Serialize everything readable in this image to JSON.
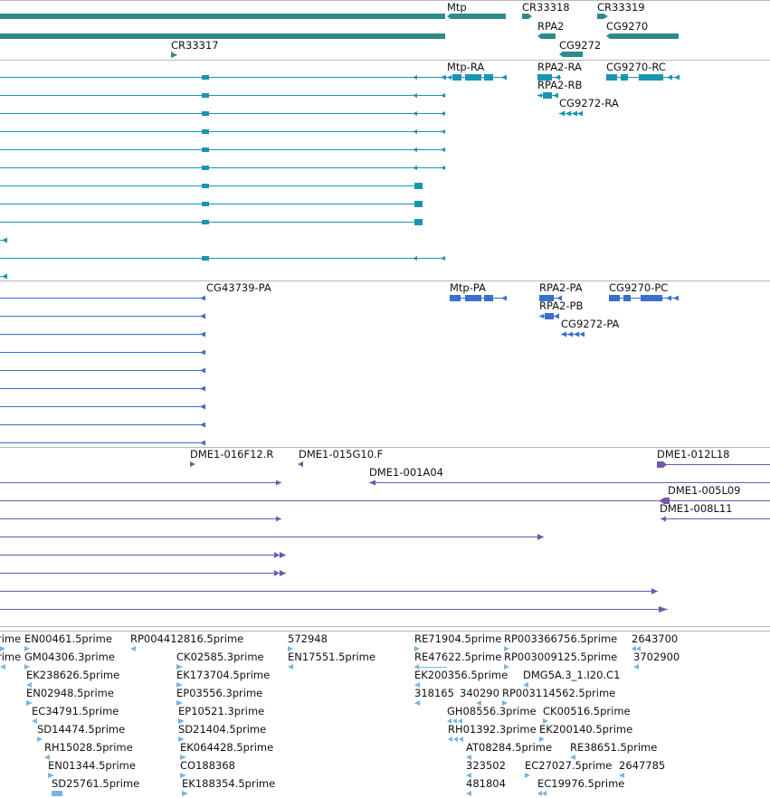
{
  "colors": {
    "gene_teal": "#2e8b8b",
    "transcript_cyan": "#1995b4",
    "protein_blue": "#3a6fcc",
    "clone_purple": "#7456ad",
    "est_lightblue": "#79b4dc",
    "divider": "#b8b8b8"
  },
  "tracks": {
    "genes": {
      "labels": [
        "Mtp",
        "CR33318",
        "CR33319",
        "RPA2",
        "CG9270",
        "CG9272",
        "CR33317"
      ]
    },
    "transcripts": {
      "labels": [
        "Mtp-RA",
        "RPA2-RA",
        "CG9270-RC",
        "RPA2-RB",
        "CG9272-RA"
      ]
    },
    "proteins": {
      "labels": [
        "CG43739-PA",
        "Mtp-PA",
        "RPA2-PA",
        "CG9270-PC",
        "RPA2-PB",
        "CG9272-PA"
      ]
    },
    "clones": {
      "labels": [
        "DME1-016F12.R",
        "DME1-015G10.F",
        "DME1-012L18",
        "DME1-001A04",
        "DME1-005L09",
        "DME1-008L11"
      ]
    },
    "ests": {
      "labels": [
        "rime",
        "EN00461.5prime",
        "RP004412816.5prime",
        "572948",
        "RE71904.5prime",
        "RP003366756.5prime",
        "2643700",
        "rime",
        "GM04306.3prime",
        "CK02585.3prime",
        "EN17551.5prime",
        "RE47622.5prime",
        "RP003009125.5prime",
        "3702900",
        "EK238626.5prime",
        "EK173704.5prime",
        "EK200356.5prime",
        "DMG5A.3_1.I20.C1",
        "EN02948.5prime",
        "EP03556.3prime",
        "318165",
        "340290",
        "RP003114562.5prime",
        "EC34791.5prime",
        "EP10521.3prime",
        "GH08556.3prime",
        "CK00516.5prime",
        "SD14474.5prime",
        "SD21404.5prime",
        "RH01392.3prime",
        "EK200140.5prime",
        "RH15028.5prime",
        "EK064428.5prime",
        "AT08284.5prime",
        "RE38651.5prime",
        "EN01344.5prime",
        "CO188368",
        "323502",
        "EC27027.5prime",
        "2647785",
        "SD25761.5prime",
        "EK188354.5prime",
        "481804",
        "EC19976.5prime"
      ]
    }
  }
}
